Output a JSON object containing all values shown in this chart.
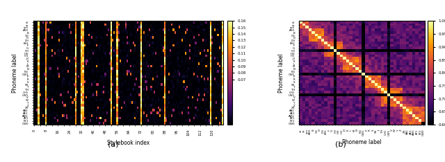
{
  "figsize": [
    6.4,
    2.34
  ],
  "dpi": 100,
  "xlabel_a": "Stylebook index",
  "xlabel_b": "Phoneme label",
  "ylabel_a": "Phoneme label",
  "ylabel_b": "Phoneme label",
  "colormap": "inferno",
  "n_phonemes": 40,
  "n_stylebook": 128,
  "colorbar_a_min": 0.0,
  "colorbar_a_max": 0.16,
  "colorbar_a_ticks": [
    0.07,
    0.08,
    0.09,
    0.1,
    0.11,
    0.12,
    0.13,
    0.14,
    0.15,
    0.16
  ],
  "colorbar_b_min": 0.6,
  "colorbar_b_max": 1.0,
  "colorbar_b_ticks": [
    0.6,
    0.65,
    0.7,
    0.75,
    0.8,
    0.85,
    0.9,
    0.95,
    1.0
  ],
  "stripe_indices": [
    3,
    8,
    28,
    32,
    33,
    52,
    56,
    72,
    88,
    119,
    127
  ],
  "dark_rows_b": [
    11,
    20,
    28
  ],
  "background_color": "#ffffff"
}
